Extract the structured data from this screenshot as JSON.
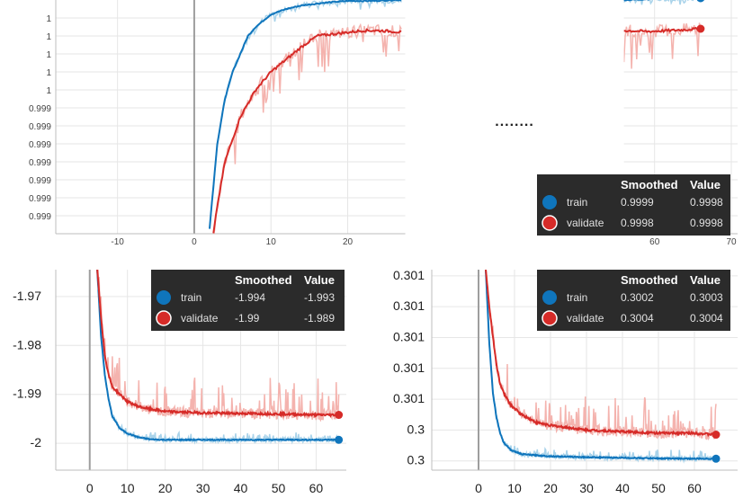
{
  "colors": {
    "train": "#0f75bc",
    "train_light": "#a9d3ea",
    "validate": "#d62b28",
    "validate_light": "#f4b3ae"
  },
  "legend_headers": {
    "name": "",
    "smoothed": "Smoothed",
    "value": "Value"
  },
  "gap_marker": "........",
  "chart_data": [
    {
      "id": "top",
      "type": "line",
      "title": "",
      "xlabel": "",
      "ylabel": "",
      "xlim": [
        -15,
        70
      ],
      "ylim": [
        0,
        13
      ],
      "x_ticks": [
        -10,
        0,
        10,
        20,
        60,
        70
      ],
      "x_tick_labels": [
        "-10",
        "0",
        "10",
        "20",
        "60",
        "70"
      ],
      "y_ticks": [
        1,
        2,
        3,
        4,
        5,
        6,
        7,
        8,
        9,
        10,
        11,
        12
      ],
      "y_tick_labels": [
        "0.999",
        "0.999",
        "0.999",
        "0.999",
        "0.999",
        "0.999",
        "0.999",
        "1",
        "1",
        "1",
        "1",
        "1"
      ],
      "gap_x": [
        27.5,
        56
      ],
      "series": [
        {
          "name": "train",
          "smoothed": "0.9999",
          "value": "0.9998",
          "x": [
            2,
            3,
            4,
            5,
            6,
            7,
            8,
            10,
            12,
            14,
            17,
            20,
            23,
            26,
            27
          ],
          "y": [
            0.3,
            5.0,
            7.5,
            9.0,
            10.0,
            11.0,
            11.5,
            12.2,
            12.5,
            12.7,
            12.85,
            12.95,
            12.95,
            13.0,
            13.0
          ],
          "x2": [
            56,
            59,
            62,
            66
          ],
          "y2": [
            13.0,
            13.05,
            13.1,
            13.1
          ]
        },
        {
          "name": "validate",
          "smoothed": "0.9998",
          "value": "0.9998",
          "x": [
            2.5,
            3,
            4,
            6,
            8,
            10,
            12,
            14,
            16,
            18,
            20,
            22,
            24,
            26,
            27
          ],
          "y": [
            0.0,
            1.5,
            4.0,
            6.5,
            8.0,
            9.0,
            9.7,
            10.4,
            11.0,
            11.1,
            11.2,
            11.3,
            11.3,
            11.25,
            11.2
          ],
          "x2": [
            56,
            59,
            62,
            66
          ],
          "y2": [
            11.3,
            11.25,
            11.3,
            11.4
          ]
        }
      ]
    },
    {
      "id": "bottom-left",
      "type": "line",
      "title": "",
      "xlabel": "",
      "ylabel": "",
      "xlim": [
        -9,
        68
      ],
      "ylim": [
        -2.0055,
        -1.9645
      ],
      "x_ticks": [
        0,
        10,
        20,
        30,
        40,
        50,
        60
      ],
      "x_tick_labels": [
        "0",
        "10",
        "20",
        "30",
        "40",
        "50",
        "60"
      ],
      "y_ticks": [
        -1.97,
        -1.98,
        -1.99,
        -2.0
      ],
      "y_tick_labels": [
        "-1.97",
        "-1.98",
        "-1.99",
        "-2"
      ],
      "series": [
        {
          "name": "train",
          "smoothed": "-1.994",
          "value": "-1.993",
          "x": [
            2,
            3,
            4,
            5,
            6,
            8,
            10,
            13,
            16,
            20,
            30,
            40,
            50,
            60,
            66
          ],
          "y": [
            -1.9645,
            -1.978,
            -1.986,
            -1.991,
            -1.9945,
            -1.997,
            -1.998,
            -1.9988,
            -1.9992,
            -1.9993,
            -1.9993,
            -1.9993,
            -1.9993,
            -1.9993,
            -1.9993
          ]
        },
        {
          "name": "validate",
          "smoothed": "-1.99",
          "value": "-1.989",
          "x": [
            2,
            3,
            4,
            5,
            6,
            8,
            10,
            13,
            16,
            20,
            30,
            40,
            50,
            60,
            66
          ],
          "y": [
            -1.9645,
            -1.974,
            -1.982,
            -1.986,
            -1.9885,
            -1.99,
            -1.9915,
            -1.9925,
            -1.993,
            -1.9935,
            -1.9938,
            -1.9939,
            -1.994,
            -1.9942,
            -1.9942
          ]
        }
      ]
    },
    {
      "id": "bottom-right",
      "type": "line",
      "title": "",
      "xlabel": "",
      "ylabel": "",
      "xlim": [
        -13,
        72
      ],
      "ylim": [
        -0.3,
        6.2
      ],
      "x_ticks": [
        0,
        10,
        20,
        30,
        40,
        50,
        60
      ],
      "x_tick_labels": [
        "0",
        "10",
        "20",
        "30",
        "40",
        "50",
        "60"
      ],
      "y_ticks": [
        0,
        1,
        2,
        3,
        4,
        5,
        6
      ],
      "y_tick_labels": [
        "0.3",
        "0.3",
        "0.301",
        "0.301",
        "0.301",
        "0.301",
        "0.301"
      ],
      "series": [
        {
          "name": "train",
          "smoothed": "0.3002",
          "value": "0.3003",
          "x": [
            2,
            3,
            4,
            5,
            6,
            7,
            9,
            12,
            16,
            20,
            30,
            40,
            50,
            60,
            66
          ],
          "y": [
            6.2,
            3.8,
            2.2,
            1.4,
            0.9,
            0.6,
            0.35,
            0.22,
            0.18,
            0.15,
            0.12,
            0.1,
            0.08,
            0.07,
            0.07
          ]
        },
        {
          "name": "validate",
          "smoothed": "0.3004",
          "value": "0.3004",
          "x": [
            2,
            3,
            4,
            5,
            6,
            7,
            9,
            12,
            16,
            20,
            30,
            40,
            50,
            60,
            66
          ],
          "y": [
            6.2,
            5.0,
            4.0,
            3.1,
            2.5,
            2.2,
            1.8,
            1.5,
            1.25,
            1.15,
            1.0,
            0.95,
            0.9,
            0.9,
            0.85
          ]
        }
      ]
    }
  ]
}
